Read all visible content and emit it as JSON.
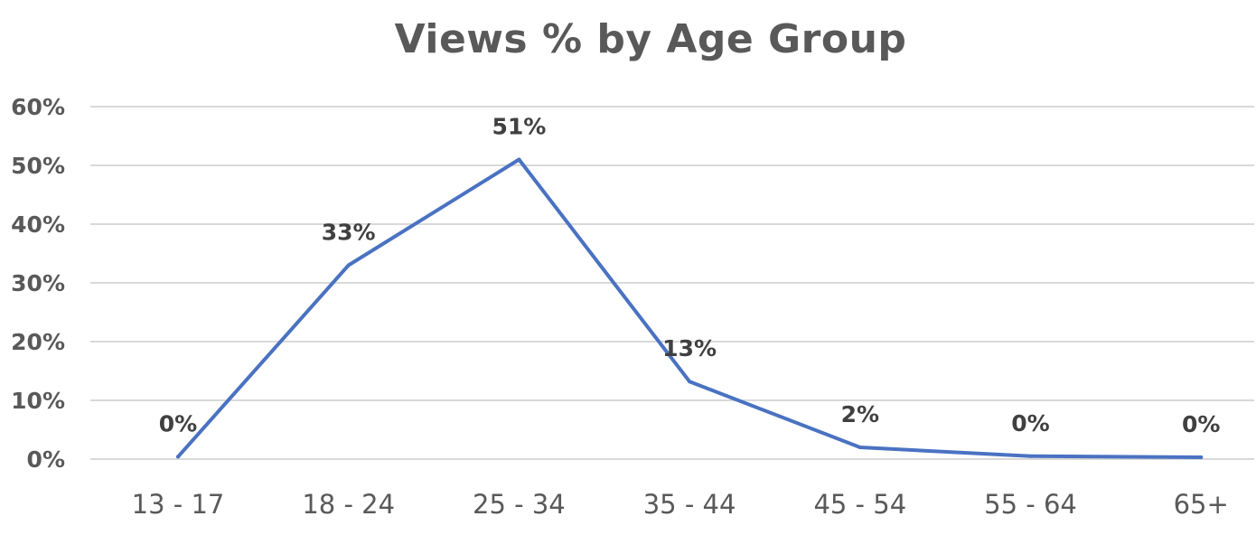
{
  "chart_data": {
    "type": "line",
    "title": "Views % by Age Group",
    "xlabel": "",
    "ylabel": "",
    "categories": [
      "13 - 17",
      "18 - 24",
      "25 - 34",
      "35 - 44",
      "45 - 54",
      "55 - 64",
      "65+"
    ],
    "series": [
      {
        "values": [
          0.4,
          33,
          51,
          13.2,
          2,
          0.5,
          0.3
        ],
        "labels": [
          "0%",
          "33%",
          "51%",
          "13%",
          "2%",
          "0%",
          "0%"
        ],
        "color": "#4a72c2"
      }
    ],
    "ylim": [
      0,
      60
    ],
    "yticks": [
      0,
      10,
      20,
      30,
      40,
      50,
      60
    ],
    "ytick_labels": [
      "0%",
      "10%",
      "20%",
      "30%",
      "40%",
      "50%",
      "60%"
    ],
    "grid": true,
    "legend": "none"
  }
}
